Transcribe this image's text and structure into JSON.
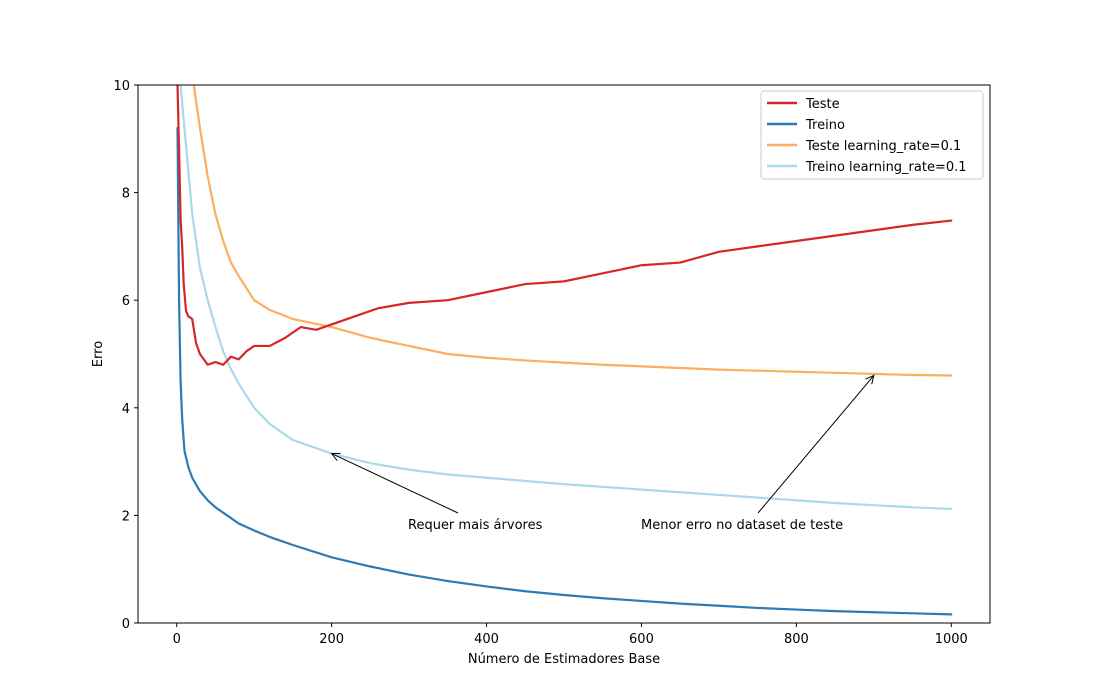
{
  "chart_data": {
    "type": "line",
    "title": "",
    "xlabel": "Número de Estimadores Base",
    "ylabel": "Erro",
    "xlim": [
      -50,
      1050
    ],
    "ylim": [
      0,
      10
    ],
    "xticks": [
      0,
      200,
      400,
      600,
      800,
      1000
    ],
    "yticks": [
      0,
      2,
      4,
      6,
      8,
      10
    ],
    "grid": false,
    "legend_position": "top-right",
    "series": [
      {
        "name": "Teste",
        "color": "#d62728",
        "x": [
          1,
          3,
          5,
          7,
          9,
          12,
          15,
          20,
          25,
          30,
          40,
          50,
          60,
          70,
          80,
          90,
          100,
          120,
          140,
          160,
          180,
          200,
          230,
          260,
          300,
          350,
          400,
          450,
          500,
          550,
          600,
          650,
          700,
          750,
          800,
          850,
          900,
          950,
          1000
        ],
        "y": [
          10.0,
          8.8,
          7.5,
          7.0,
          6.3,
          5.8,
          5.7,
          5.65,
          5.2,
          5.0,
          4.8,
          4.85,
          4.8,
          4.95,
          4.9,
          5.05,
          5.15,
          5.15,
          5.3,
          5.5,
          5.45,
          5.55,
          5.7,
          5.85,
          5.95,
          6.0,
          6.15,
          6.3,
          6.35,
          6.5,
          6.65,
          6.7,
          6.9,
          7.0,
          7.1,
          7.2,
          7.3,
          7.4,
          7.48
        ]
      },
      {
        "name": "Treino",
        "color": "#2c7bb6",
        "x": [
          1,
          3,
          5,
          7,
          10,
          15,
          20,
          30,
          40,
          50,
          60,
          70,
          80,
          100,
          120,
          150,
          200,
          250,
          300,
          350,
          400,
          450,
          500,
          550,
          600,
          650,
          700,
          750,
          800,
          850,
          900,
          950,
          1000
        ],
        "y": [
          9.2,
          6.0,
          4.5,
          3.8,
          3.2,
          2.9,
          2.7,
          2.45,
          2.28,
          2.15,
          2.05,
          1.95,
          1.85,
          1.72,
          1.6,
          1.45,
          1.22,
          1.05,
          0.9,
          0.78,
          0.68,
          0.59,
          0.52,
          0.46,
          0.41,
          0.36,
          0.32,
          0.28,
          0.25,
          0.22,
          0.2,
          0.18,
          0.16
        ]
      },
      {
        "name": "Teste learning_rate=0.1",
        "color": "#fdae61",
        "x": [
          22,
          30,
          40,
          50,
          60,
          70,
          80,
          100,
          120,
          150,
          200,
          250,
          300,
          350,
          400,
          450,
          500,
          550,
          600,
          650,
          700,
          750,
          800,
          850,
          900,
          950,
          1000
        ],
        "y": [
          10.0,
          9.2,
          8.3,
          7.6,
          7.1,
          6.7,
          6.45,
          6.0,
          5.82,
          5.65,
          5.5,
          5.3,
          5.15,
          5.0,
          4.93,
          4.88,
          4.84,
          4.8,
          4.77,
          4.74,
          4.71,
          4.69,
          4.67,
          4.65,
          4.63,
          4.61,
          4.6
        ]
      },
      {
        "name": "Treino learning_rate=0.1",
        "color": "#abd9e9",
        "x": [
          5,
          10,
          20,
          30,
          40,
          50,
          60,
          70,
          80,
          100,
          120,
          150,
          200,
          250,
          300,
          350,
          400,
          450,
          500,
          550,
          600,
          650,
          700,
          750,
          800,
          850,
          900,
          950,
          1000
        ],
        "y": [
          10.0,
          9.2,
          7.6,
          6.6,
          6.0,
          5.5,
          5.05,
          4.72,
          4.45,
          4.0,
          3.7,
          3.4,
          3.15,
          2.97,
          2.85,
          2.76,
          2.7,
          2.64,
          2.58,
          2.53,
          2.48,
          2.43,
          2.38,
          2.33,
          2.28,
          2.23,
          2.19,
          2.15,
          2.12
        ]
      }
    ],
    "annotations": [
      {
        "text": "Requer mais árvores",
        "xy": [
          200,
          3.15
        ],
        "xytext": [
          300,
          1.8
        ]
      },
      {
        "text": "Menor erro no dataset de teste",
        "xy": [
          900,
          4.6
        ],
        "xytext": [
          600,
          1.8
        ]
      }
    ]
  }
}
